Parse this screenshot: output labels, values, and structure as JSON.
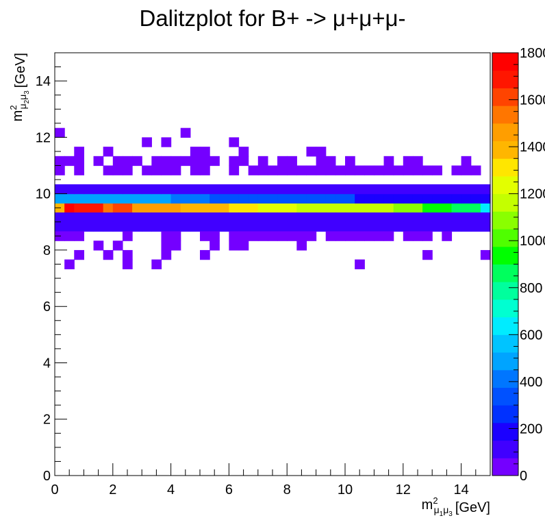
{
  "chart_data": {
    "type": "heatmap",
    "title": "Dalitzplot for B+ -> μ+μ+μ-",
    "xlabel": {
      "base": "m",
      "sup": "2",
      "sub1": "μ",
      "sub1s": "1",
      "sub2": "μ",
      "sub2s": "3",
      "unit": "[GeV]"
    },
    "ylabel": {
      "base": "m",
      "sup": "2",
      "sub1": "μ",
      "sub1s": "2",
      "sub2": "μ",
      "sub2s": "3",
      "unit": "[GeV]"
    },
    "xlim": [
      0,
      15
    ],
    "ylim": [
      0,
      15
    ],
    "x_ticks": [
      "0",
      "2",
      "4",
      "6",
      "8",
      "10",
      "12",
      "14"
    ],
    "y_ticks": [
      "0",
      "2",
      "4",
      "6",
      "8",
      "10",
      "12",
      "14"
    ],
    "bins": {
      "nx": 45,
      "ny": 45
    },
    "z_range": [
      0,
      1800
    ],
    "colorbar_ticks": [
      "0",
      "200",
      "400",
      "600",
      "800",
      "1000",
      "1200",
      "1400",
      "1600",
      "1800"
    ],
    "colorbar_tick_values": [
      0,
      200,
      400,
      600,
      800,
      1000,
      1200,
      1400,
      1600,
      1800
    ],
    "palette": [
      "#7400ff",
      "#4000ff",
      "#1b00ff",
      "#0031ff",
      "#0051ff",
      "#0076ff",
      "#00a4ff",
      "#00c4ff",
      "#00ecff",
      "#00ffd1",
      "#00ff9d",
      "#00ff5d",
      "#00ff00",
      "#4fff00",
      "#8aff00",
      "#c4ff00",
      "#e3ff00",
      "#ffe600",
      "#ffb600",
      "#ff9e00",
      "#ff7600",
      "#ff4400",
      "#ff1600",
      "#ff0000"
    ],
    "rows": [
      {
        "y_range": [
          9.3333,
          9.6667
        ],
        "values": [
          1400,
          1750,
          1700,
          1700,
          1650,
          1500,
          1600,
          1600,
          1450,
          1450,
          1450,
          1450,
          1450,
          1400,
          1400,
          1400,
          1350,
          1350,
          1300,
          1300,
          1300,
          1250,
          1250,
          1250,
          1250,
          1150,
          1150,
          1150,
          1150,
          1150,
          1150,
          1150,
          1150,
          1150,
          1150,
          1050,
          1050,
          1050,
          900,
          900,
          900,
          850,
          850,
          850,
          650
        ]
      },
      {
        "y_range": [
          9.6667,
          10.0
        ],
        "values": [
          450,
          450,
          450,
          450,
          450,
          450,
          450,
          450,
          450,
          450,
          450,
          450,
          400,
          400,
          400,
          400,
          300,
          300,
          300,
          300,
          300,
          300,
          300,
          300,
          300,
          300,
          300,
          300,
          300,
          300,
          300,
          200,
          200,
          200,
          200,
          200,
          200,
          200,
          200,
          200,
          200,
          200,
          200,
          200,
          200
        ]
      },
      {
        "y_range": [
          9.0,
          9.3333
        ],
        "values": [
          100,
          100,
          100,
          100,
          100,
          100,
          100,
          100,
          100,
          100,
          100,
          100,
          100,
          100,
          100,
          100,
          100,
          100,
          100,
          100,
          100,
          100,
          100,
          100,
          100,
          100,
          100,
          100,
          100,
          100,
          100,
          100,
          100,
          100,
          100,
          100,
          100,
          100,
          100,
          100,
          100,
          100,
          100,
          100,
          100
        ]
      },
      {
        "y_range": [
          8.6667,
          9.0
        ],
        "values": [
          100,
          100,
          100,
          100,
          100,
          100,
          100,
          100,
          100,
          100,
          100,
          100,
          100,
          100,
          100,
          100,
          100,
          100,
          100,
          100,
          100,
          100,
          100,
          100,
          100,
          100,
          100,
          100,
          100,
          100,
          100,
          100,
          100,
          100,
          100,
          100,
          100,
          100,
          100,
          100,
          100,
          100,
          100,
          100,
          100
        ]
      },
      {
        "y_range": [
          10.0,
          10.3333
        ],
        "values": [
          100,
          100,
          100,
          100,
          100,
          100,
          100,
          100,
          100,
          100,
          100,
          100,
          100,
          100,
          100,
          100,
          100,
          100,
          100,
          100,
          100,
          100,
          100,
          100,
          100,
          100,
          100,
          100,
          100,
          100,
          100,
          100,
          100,
          100,
          100,
          100,
          100,
          100,
          100,
          100,
          100,
          100,
          100,
          100,
          100
        ]
      }
    ],
    "sparse_cells": [
      [
        0,
        11
      ],
      [
        0,
        10.6667
      ],
      [
        2,
        10.6667
      ],
      [
        5,
        10.6667
      ],
      [
        6,
        10.6667
      ],
      [
        7,
        10.6667
      ],
      [
        9,
        10.6667
      ],
      [
        10,
        10.6667
      ],
      [
        11,
        10.6667
      ],
      [
        12,
        10.6667
      ],
      [
        14,
        10.6667
      ],
      [
        15,
        10.6667
      ],
      [
        18,
        10.6667
      ],
      [
        20,
        10.6667
      ],
      [
        21,
        10.6667
      ],
      [
        22,
        10.6667
      ],
      [
        23,
        10.6667
      ],
      [
        24,
        10.6667
      ],
      [
        25,
        10.6667
      ],
      [
        26,
        10.6667
      ],
      [
        27,
        10.6667
      ],
      [
        28,
        10.6667
      ],
      [
        29,
        10.6667
      ],
      [
        30,
        10.6667
      ],
      [
        31,
        10.6667
      ],
      [
        32,
        10.6667
      ],
      [
        33,
        10.6667
      ],
      [
        34,
        10.6667
      ],
      [
        35,
        10.6667
      ],
      [
        36,
        10.6667
      ],
      [
        37,
        10.6667
      ],
      [
        38,
        10.6667
      ],
      [
        39,
        10.6667
      ],
      [
        41,
        10.6667
      ],
      [
        42,
        10.6667
      ],
      [
        43,
        10.6667
      ],
      [
        1,
        11.0
      ],
      [
        2,
        11.0
      ],
      [
        4,
        11.0
      ],
      [
        6,
        11.0
      ],
      [
        7,
        11.0
      ],
      [
        8,
        11.0
      ],
      [
        10,
        11.0
      ],
      [
        11,
        11.0
      ],
      [
        12,
        11.0
      ],
      [
        13,
        11.0
      ],
      [
        14,
        11.0
      ],
      [
        15,
        11.0
      ],
      [
        16,
        11.0
      ],
      [
        18,
        11.0
      ],
      [
        19,
        11.0
      ],
      [
        21,
        11.0
      ],
      [
        23,
        11.0
      ],
      [
        24,
        11.0
      ],
      [
        27,
        11.0
      ],
      [
        28,
        11.0
      ],
      [
        30,
        11.0
      ],
      [
        34,
        11.0
      ],
      [
        36,
        11.0
      ],
      [
        37,
        11.0
      ],
      [
        42,
        11.0
      ],
      [
        2,
        11.3333
      ],
      [
        5,
        11.3333
      ],
      [
        14,
        11.3333
      ],
      [
        15,
        11.3333
      ],
      [
        19,
        11.3333
      ],
      [
        26,
        11.3333
      ],
      [
        27,
        11.3333
      ],
      [
        9,
        11.6667
      ],
      [
        11,
        11.6667
      ],
      [
        18,
        11.6667
      ],
      [
        13,
        12.0
      ],
      [
        0,
        12.0
      ],
      [
        1,
        8.3333
      ],
      [
        2,
        8.3333
      ],
      [
        7,
        8.3333
      ],
      [
        11,
        8.3333
      ],
      [
        12,
        8.3333
      ],
      [
        15,
        8.3333
      ],
      [
        16,
        8.3333
      ],
      [
        18,
        8.3333
      ],
      [
        19,
        8.3333
      ],
      [
        20,
        8.3333
      ],
      [
        21,
        8.3333
      ],
      [
        22,
        8.3333
      ],
      [
        23,
        8.3333
      ],
      [
        24,
        8.3333
      ],
      [
        25,
        8.3333
      ],
      [
        26,
        8.3333
      ],
      [
        28,
        8.3333
      ],
      [
        29,
        8.3333
      ],
      [
        30,
        8.3333
      ],
      [
        31,
        8.3333
      ],
      [
        32,
        8.3333
      ],
      [
        33,
        8.3333
      ],
      [
        34,
        8.3333
      ],
      [
        36,
        8.3333
      ],
      [
        37,
        8.3333
      ],
      [
        38,
        8.3333
      ],
      [
        40,
        8.3333
      ],
      [
        0,
        8.3333
      ],
      [
        4,
        8.0
      ],
      [
        6,
        8.0
      ],
      [
        11,
        8.0
      ],
      [
        12,
        8.0
      ],
      [
        16,
        8.0
      ],
      [
        18,
        8.0
      ],
      [
        19,
        8.0
      ],
      [
        25,
        8.0
      ],
      [
        2,
        7.6667
      ],
      [
        5,
        7.6667
      ],
      [
        7,
        7.6667
      ],
      [
        11,
        7.6667
      ],
      [
        15,
        7.6667
      ],
      [
        38,
        7.6667
      ],
      [
        44,
        7.6667
      ],
      [
        1,
        7.3333
      ],
      [
        7,
        7.3333
      ],
      [
        10,
        7.3333
      ],
      [
        31,
        7.3333
      ]
    ]
  }
}
